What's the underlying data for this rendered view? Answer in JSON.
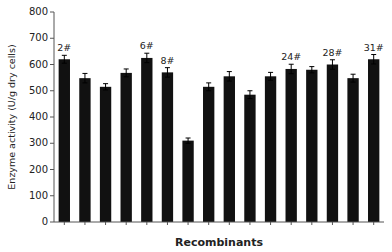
{
  "chart_data": {
    "type": "bar",
    "xlabel": "Recombinants",
    "ylabel": "Enzyme activity (U/g dry cells)",
    "categories": [
      null,
      null,
      null,
      null,
      null,
      null,
      null,
      null,
      null,
      null,
      null,
      null,
      null,
      null,
      null,
      null
    ],
    "values": [
      620,
      548,
      515,
      568,
      625,
      570,
      310,
      515,
      555,
      485,
      555,
      583,
      580,
      600,
      548,
      620
    ],
    "errors": [
      15,
      18,
      12,
      15,
      18,
      18,
      10,
      15,
      18,
      15,
      15,
      18,
      12,
      18,
      15,
      18
    ],
    "color": "#111111",
    "annotations": [
      {
        "index": 0,
        "text": "2#"
      },
      {
        "index": 4,
        "text": "6#"
      },
      {
        "index": 5,
        "text": "8#"
      },
      {
        "index": 11,
        "text": "24#"
      },
      {
        "index": 13,
        "text": "28#"
      },
      {
        "index": 15,
        "text": "31#"
      }
    ],
    "ylim": [
      0,
      800
    ],
    "yticks": [
      0,
      100,
      200,
      300,
      400,
      500,
      600,
      700,
      800
    ],
    "grid": false,
    "tick_labels": "y"
  }
}
